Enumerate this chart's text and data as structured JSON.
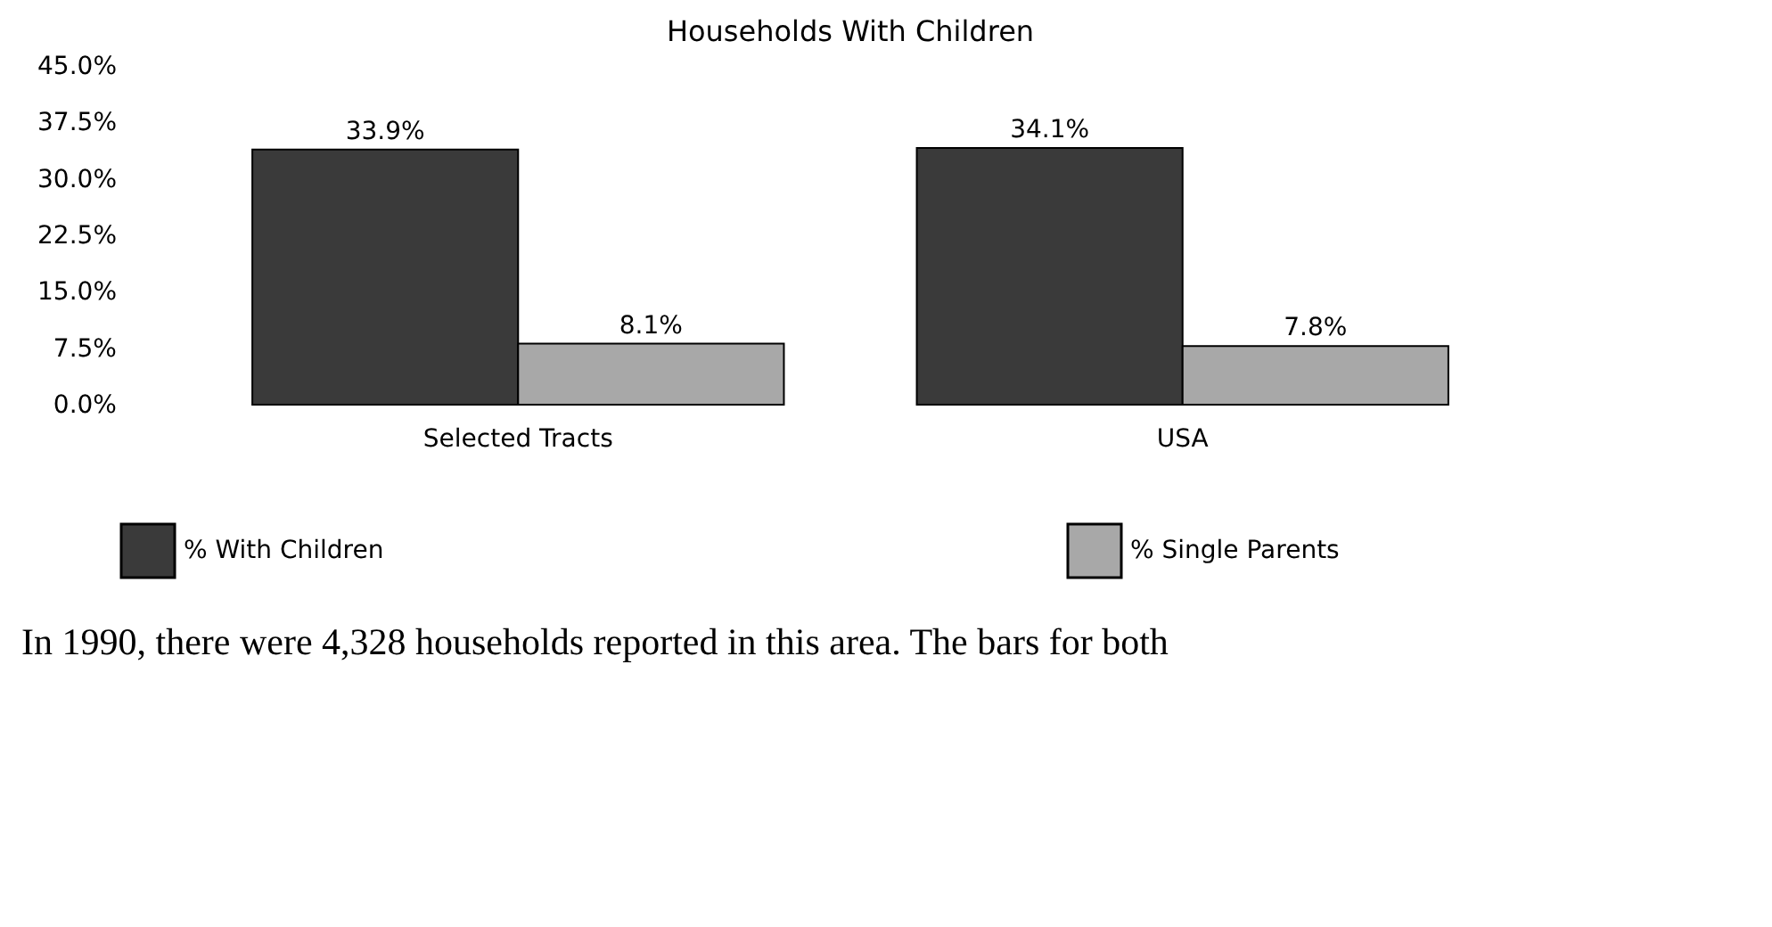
{
  "chart_data": {
    "type": "bar",
    "title": "Households With Children",
    "categories": [
      "Selected Tracts",
      "USA"
    ],
    "series": [
      {
        "name": "% With Children",
        "color": "#3a3a3a",
        "values": [
          33.9,
          34.1
        ],
        "value_labels": [
          "33.9%",
          "34.1%"
        ]
      },
      {
        "name": "% Single Parents",
        "color": "#a8a8a8",
        "values": [
          8.1,
          7.8
        ],
        "value_labels": [
          "8.1%",
          "7.8%"
        ]
      }
    ],
    "ylim": [
      0,
      45
    ],
    "yticks": [
      {
        "value": 0,
        "label": "0.0%"
      },
      {
        "value": 7.5,
        "label": "7.5%"
      },
      {
        "value": 15,
        "label": "15.0%"
      },
      {
        "value": 22.5,
        "label": "22.5%"
      },
      {
        "value": 30,
        "label": "30.0%"
      },
      {
        "value": 37.5,
        "label": "37.5%"
      },
      {
        "value": 45,
        "label": "45.0%"
      }
    ],
    "grid": false,
    "legend": "bottom",
    "annotations": [
      "In 1990, there were 4,328 households reported in this area. The bars for both"
    ]
  }
}
